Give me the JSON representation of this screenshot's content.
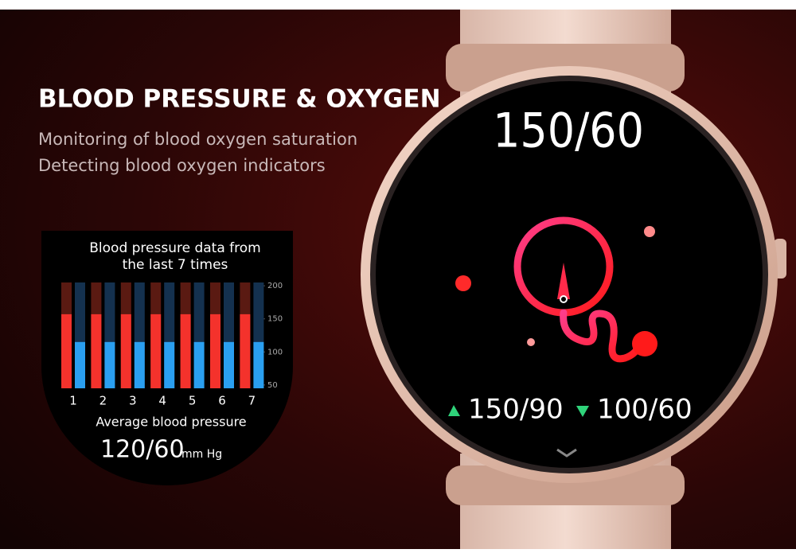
{
  "header": {
    "title": "BLOOD PRESSURE & OXYGEN",
    "lines": [
      "Monitoring of blood oxygen saturation",
      "Detecting blood oxygen indicators"
    ]
  },
  "chart_data": {
    "type": "bar",
    "title": "Blood pressure data from the last 7 times",
    "categories": [
      "1",
      "2",
      "3",
      "4",
      "5",
      "6",
      "7"
    ],
    "series": [
      {
        "color": "#f4322c",
        "values": [
          157,
          157,
          157,
          157,
          157,
          157,
          157
        ]
      },
      {
        "color": "#2a9ff0",
        "values": [
          115,
          115,
          115,
          115,
          115,
          115,
          115
        ]
      }
    ],
    "ylim": [
      45,
      205
    ],
    "yticks": [
      50,
      100,
      150,
      200
    ],
    "footer": {
      "label": "Average blood pressure",
      "value": "120/60",
      "unit": "mm Hg"
    }
  },
  "watch": {
    "reading": "150/60",
    "high": "150/90",
    "low": "100/60"
  }
}
